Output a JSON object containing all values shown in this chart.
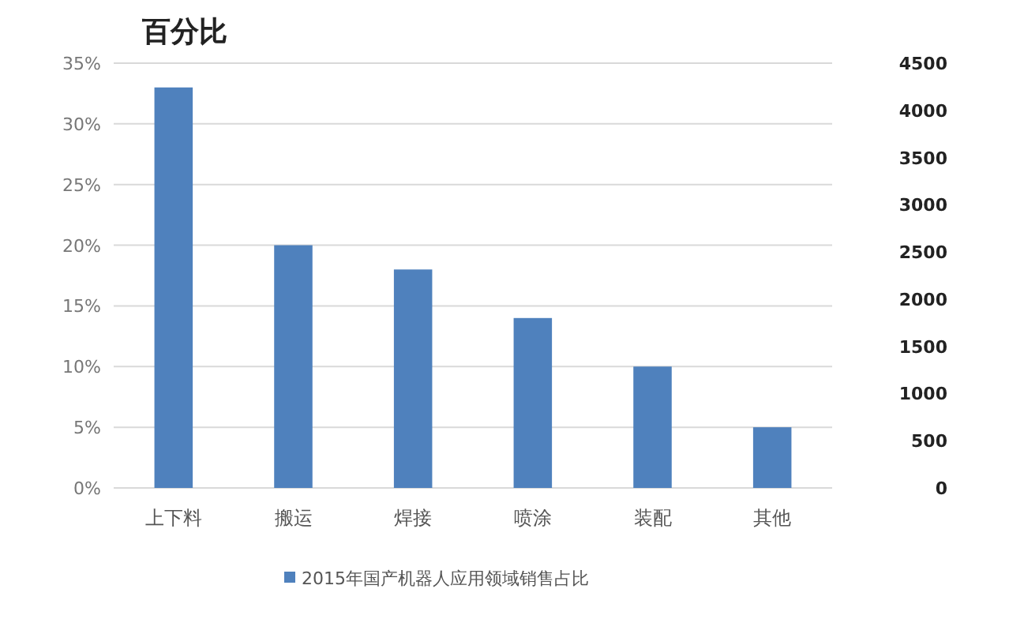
{
  "chart_data": {
    "type": "bar",
    "title": "百分比",
    "categories": [
      "上下料",
      "搬运",
      "焊接",
      "喷涂",
      "装配",
      "其他"
    ],
    "series": [
      {
        "name": "2015年国产机器人应用领域销售占比",
        "color": "#4f81bd",
        "values": [
          33,
          20,
          18,
          14,
          10,
          5
        ]
      }
    ],
    "ylim": [
      0,
      35
    ],
    "yticks": [
      {
        "value": 0,
        "label": "0%"
      },
      {
        "value": 5,
        "label": "5%"
      },
      {
        "value": 10,
        "label": "10%"
      },
      {
        "value": 15,
        "label": "15%"
      },
      {
        "value": 20,
        "label": "20%"
      },
      {
        "value": 25,
        "label": "25%"
      },
      {
        "value": 30,
        "label": "30%"
      },
      {
        "value": 35,
        "label": "35%"
      }
    ],
    "y2lim": [
      0,
      4500
    ],
    "y2ticks": [
      0,
      500,
      1000,
      1500,
      2000,
      2500,
      3000,
      3500,
      4000,
      4500
    ],
    "grid": "y",
    "legend": "bottom"
  }
}
